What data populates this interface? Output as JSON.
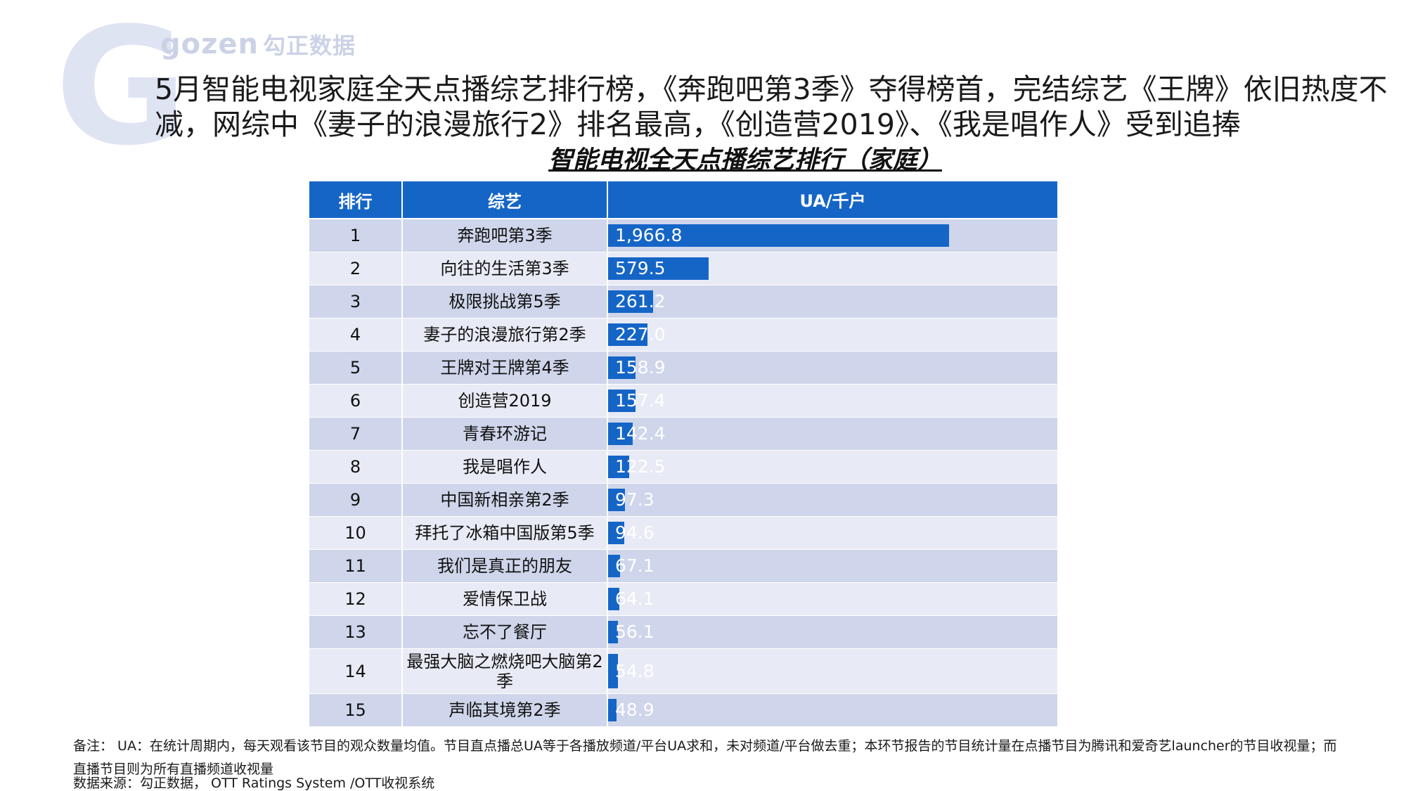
{
  "logo": {
    "brand": "gozen",
    "cn": "勾正数据",
    "watermark_letter": "G"
  },
  "headline": "5月智能电视家庭全天点播综艺排行榜，《奔跑吧第3季》夺得榜首，完结综艺《王牌》依旧热度不减，网综中《妻子的浪漫旅行2》排名最高，《创造营2019》、《我是唱作人》受到追捧",
  "colors": {
    "accent": "#1565c7",
    "row_dark": "#cfd6eb",
    "row_light": "#e8ebf5"
  },
  "chart_data": {
    "type": "bar",
    "title": "智能电视全天点播综艺排行（家庭）",
    "columns": [
      "排行",
      "综艺",
      "UA/千户"
    ],
    "rows": [
      {
        "rank": "1",
        "name": "奔跑吧第3季",
        "value": 1966.8,
        "label": "1,966.8"
      },
      {
        "rank": "2",
        "name": "向往的生活第3季",
        "value": 579.5,
        "label": "579.5"
      },
      {
        "rank": "3",
        "name": "极限挑战第5季",
        "value": 261.2,
        "label": "261.2"
      },
      {
        "rank": "4",
        "name": "妻子的浪漫旅行第2季",
        "value": 227.0,
        "label": "227.0"
      },
      {
        "rank": "5",
        "name": "王牌对王牌第4季",
        "value": 158.9,
        "label": "158.9"
      },
      {
        "rank": "6",
        "name": "创造营2019",
        "value": 157.4,
        "label": "157.4"
      },
      {
        "rank": "7",
        "name": "青春环游记",
        "value": 142.4,
        "label": "142.4"
      },
      {
        "rank": "8",
        "name": "我是唱作人",
        "value": 122.5,
        "label": "122.5"
      },
      {
        "rank": "9",
        "name": "中国新相亲第2季",
        "value": 97.3,
        "label": "97.3"
      },
      {
        "rank": "10",
        "name": "拜托了冰箱中国版第5季",
        "value": 94.6,
        "label": "94.6"
      },
      {
        "rank": "11",
        "name": "我们是真正的朋友",
        "value": 67.1,
        "label": "67.1"
      },
      {
        "rank": "12",
        "name": "爱情保卫战",
        "value": 64.1,
        "label": "64.1"
      },
      {
        "rank": "13",
        "name": "忘不了餐厅",
        "value": 56.1,
        "label": "56.1"
      },
      {
        "rank": "14",
        "name": "最强大脑之燃烧吧大脑第2季",
        "value": 54.8,
        "label": "54.8"
      },
      {
        "rank": "15",
        "name": "声临其境第2季",
        "value": 48.9,
        "label": "48.9"
      }
    ]
  },
  "footnote": {
    "note": "备注： UA：在统计周期内，每天观看该节目的观众数量均值。节目直点播总UA等于各播放频道/平台UA求和，未对频道/平台做去重；本环节报告的节目统计量在点播节目为腾讯和爱奇艺launcher的节目收视量；而直播节目则为所有直播频道收视量",
    "source": "数据来源：勾正数据， OTT Ratings System /OTT收视系统"
  }
}
